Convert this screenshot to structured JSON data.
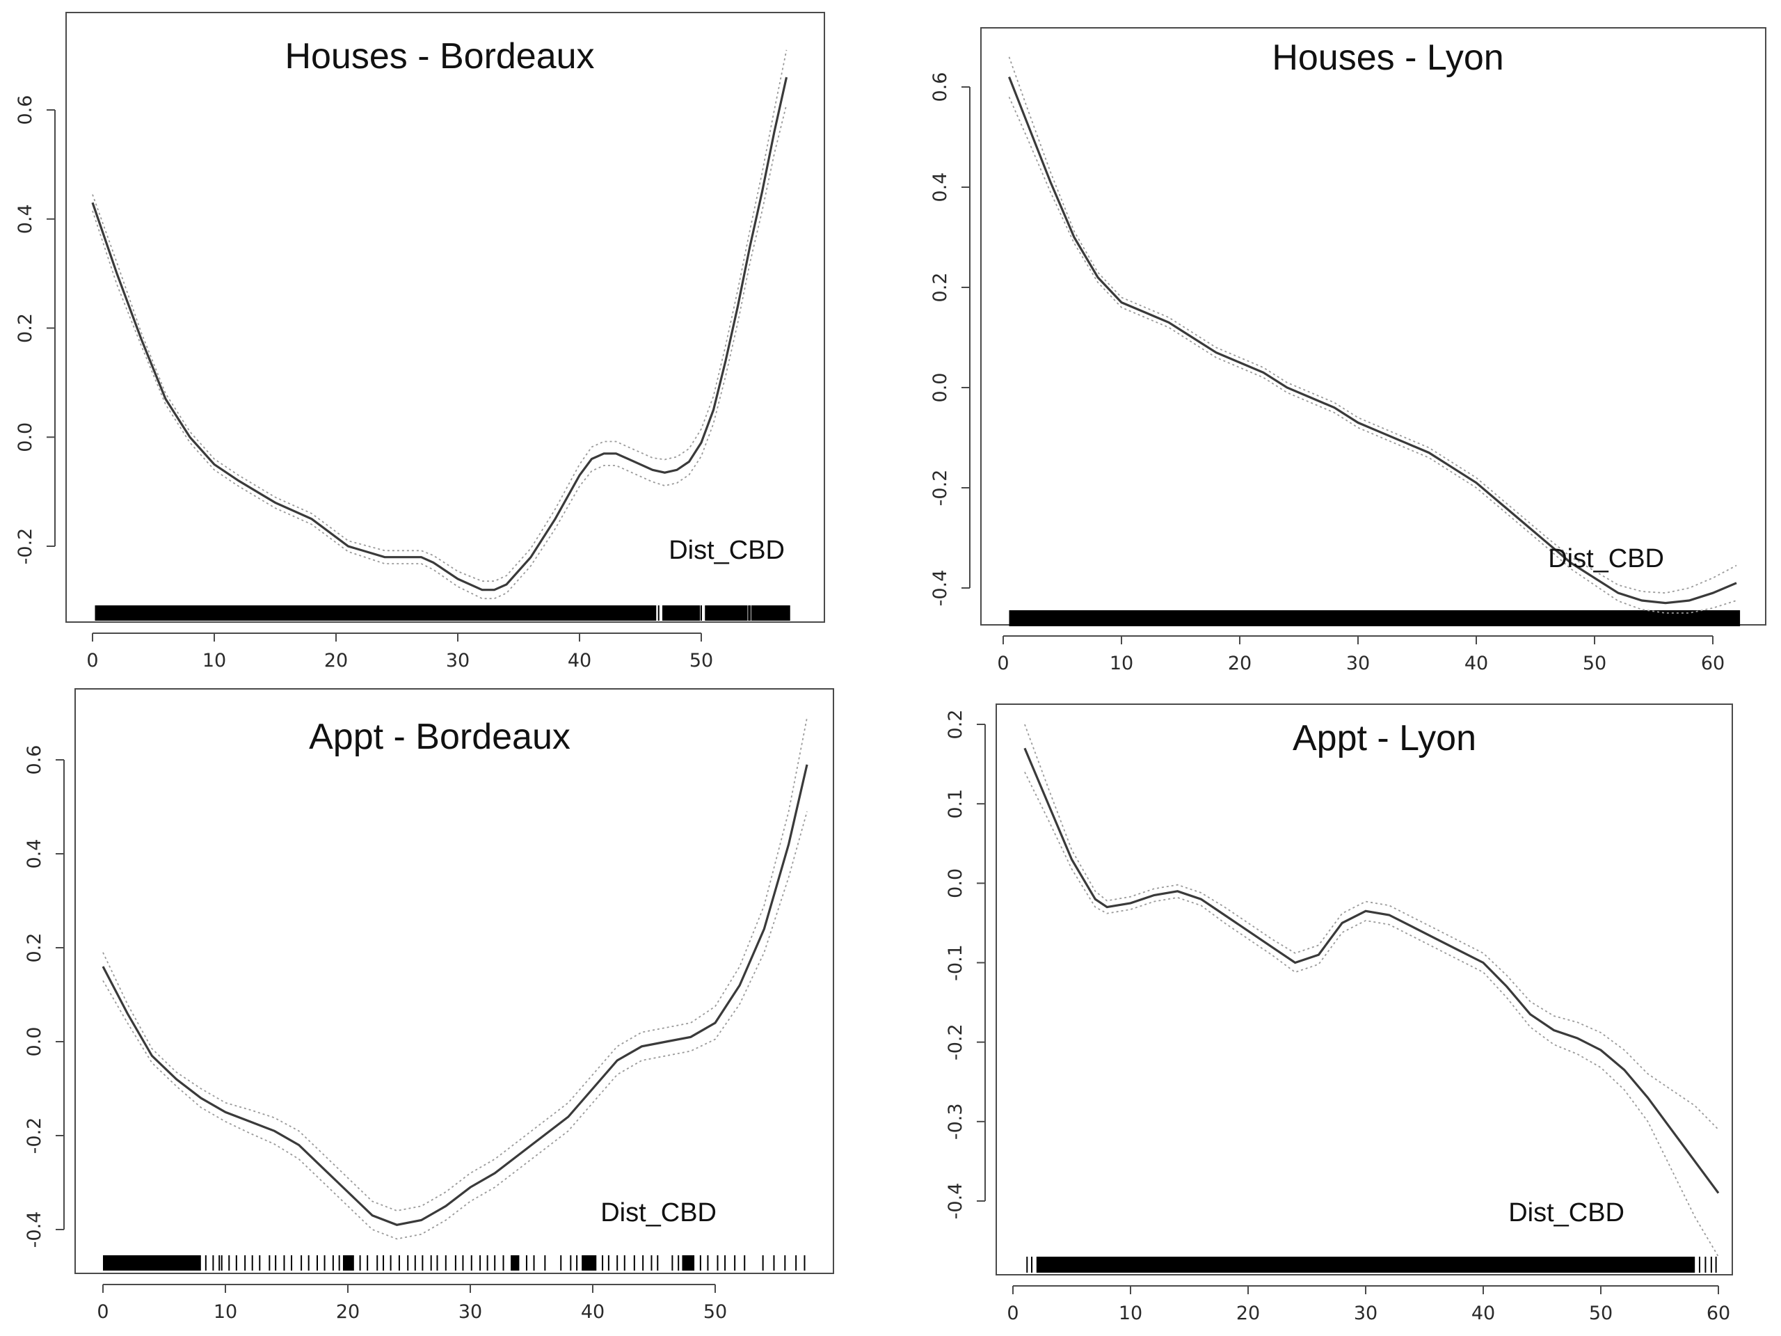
{
  "chart_data": [
    {
      "type": "line",
      "title": "Houses - Bordeaux",
      "xlabel": "Dist_CBD",
      "ylabel": "",
      "xlim": [
        0,
        60
      ],
      "ylim": [
        -0.3,
        0.7
      ],
      "x_ticks": [
        "0",
        "10",
        "20",
        "30",
        "40",
        "50"
      ],
      "y_ticks": [
        "-0.2",
        "0.0",
        "0.2",
        "0.4",
        "0.6"
      ],
      "x": [
        0,
        2,
        4,
        6,
        8,
        10,
        12,
        15,
        18,
        21,
        24,
        27,
        28,
        30,
        32,
        33,
        34,
        36,
        38,
        40,
        41,
        42,
        43,
        44,
        45,
        46,
        47,
        48,
        49,
        50,
        51,
        52,
        53,
        54,
        55,
        56,
        57
      ],
      "series": [
        {
          "values": [
            0.43,
            0.3,
            0.18,
            0.07,
            0.0,
            -0.05,
            -0.08,
            -0.12,
            -0.15,
            -0.2,
            -0.22,
            -0.22,
            -0.23,
            -0.26,
            -0.28,
            -0.28,
            -0.27,
            -0.22,
            -0.15,
            -0.07,
            -0.04,
            -0.03,
            -0.03,
            -0.04,
            -0.05,
            -0.06,
            -0.065,
            -0.06,
            -0.045,
            -0.01,
            0.05,
            0.14,
            0.24,
            0.35,
            0.45,
            0.56,
            0.66
          ]
        }
      ],
      "band_halfwidth": [
        0.015,
        0.02,
        0.012,
        0.01,
        0.01,
        0.01,
        0.01,
        0.01,
        0.01,
        0.01,
        0.012,
        0.012,
        0.013,
        0.014,
        0.016,
        0.016,
        0.016,
        0.016,
        0.018,
        0.02,
        0.022,
        0.022,
        0.022,
        0.022,
        0.022,
        0.022,
        0.024,
        0.024,
        0.024,
        0.025,
        0.025,
        0.028,
        0.03,
        0.03,
        0.035,
        0.04,
        0.05
      ],
      "rug_ranges": [
        [
          0.2,
          46.3
        ],
        [
          46.8,
          49.9
        ],
        [
          50.3,
          53.8
        ],
        [
          54.1,
          57.3
        ]
      ],
      "rug_lines": [
        46.5,
        50.0,
        53.9,
        54.0,
        55.6,
        56.5
      ]
    },
    {
      "type": "line",
      "title": "Houses - Lyon",
      "xlabel": "Dist_CBD",
      "ylabel": "",
      "xlim": [
        0,
        62
      ],
      "ylim": [
        -0.45,
        0.65
      ],
      "x_ticks": [
        "0",
        "10",
        "20",
        "30",
        "40",
        "50",
        "60"
      ],
      "y_ticks": [
        "-0.4",
        "-0.2",
        "0.0",
        "0.2",
        "0.4",
        "0.6"
      ],
      "x": [
        0.5,
        2,
        4,
        6,
        8,
        10,
        12,
        14,
        16,
        18,
        20,
        22,
        24,
        26,
        28,
        30,
        32,
        34,
        36,
        38,
        40,
        42,
        44,
        46,
        48,
        50,
        52,
        54,
        56,
        58,
        60,
        62
      ],
      "series": [
        {
          "values": [
            0.62,
            0.53,
            0.41,
            0.3,
            0.22,
            0.17,
            0.15,
            0.13,
            0.1,
            0.07,
            0.05,
            0.03,
            0.0,
            -0.02,
            -0.04,
            -0.07,
            -0.09,
            -0.11,
            -0.13,
            -0.16,
            -0.19,
            -0.23,
            -0.27,
            -0.31,
            -0.35,
            -0.38,
            -0.41,
            -0.425,
            -0.43,
            -0.425,
            -0.41,
            -0.39
          ]
        }
      ],
      "band_halfwidth": [
        0.04,
        0.03,
        0.02,
        0.012,
        0.01,
        0.01,
        0.01,
        0.01,
        0.01,
        0.01,
        0.01,
        0.01,
        0.01,
        0.01,
        0.01,
        0.01,
        0.01,
        0.01,
        0.01,
        0.01,
        0.01,
        0.01,
        0.01,
        0.01,
        0.012,
        0.014,
        0.016,
        0.018,
        0.02,
        0.025,
        0.03,
        0.035
      ],
      "rug_ranges": [
        [
          0.5,
          62.3
        ]
      ],
      "rug_lines": []
    },
    {
      "type": "line",
      "title": "Appt - Bordeaux",
      "xlabel": "Dist_CBD",
      "ylabel": "",
      "xlim": [
        0,
        60
      ],
      "ylim": [
        -0.45,
        0.7
      ],
      "x_ticks": [
        "0",
        "10",
        "20",
        "30",
        "40",
        "50"
      ],
      "y_ticks": [
        "-0.4",
        "-0.2",
        "0.0",
        "0.2",
        "0.4",
        "0.6"
      ],
      "x": [
        0,
        2,
        4,
        6,
        8,
        10,
        12,
        14,
        16,
        18,
        20,
        22,
        24,
        26,
        28,
        30,
        32,
        34,
        36,
        38,
        40,
        42,
        44,
        46,
        48,
        50,
        52,
        54,
        56,
        57.5
      ],
      "series": [
        {
          "values": [
            0.16,
            0.06,
            -0.03,
            -0.08,
            -0.12,
            -0.15,
            -0.17,
            -0.19,
            -0.22,
            -0.27,
            -0.32,
            -0.37,
            -0.39,
            -0.38,
            -0.35,
            -0.31,
            -0.28,
            -0.24,
            -0.2,
            -0.16,
            -0.1,
            -0.04,
            -0.01,
            0.0,
            0.01,
            0.04,
            0.12,
            0.24,
            0.42,
            0.59
          ]
        }
      ],
      "band_halfwidth": [
        0.03,
        0.02,
        0.015,
        0.015,
        0.02,
        0.02,
        0.025,
        0.028,
        0.03,
        0.03,
        0.03,
        0.03,
        0.03,
        0.03,
        0.03,
        0.03,
        0.03,
        0.03,
        0.03,
        0.03,
        0.03,
        0.03,
        0.03,
        0.03,
        0.03,
        0.035,
        0.04,
        0.05,
        0.07,
        0.1
      ],
      "rug_ranges": [
        [
          0,
          8
        ],
        [
          19.6,
          20.5
        ],
        [
          33.3,
          34
        ],
        [
          39.1,
          40.3
        ],
        [
          47.3,
          48.3
        ]
      ],
      "rug_lines": [
        8.4,
        9.0,
        9.5,
        9.7,
        10.3,
        10.9,
        11.6,
        12.2,
        12.8,
        13.6,
        14.1,
        14.8,
        15.4,
        16.2,
        16.8,
        17.5,
        18.1,
        18.8,
        19.3,
        21.0,
        21.6,
        22.4,
        22.9,
        23.5,
        24.2,
        24.9,
        25.5,
        26.1,
        26.8,
        27.3,
        28.0,
        28.8,
        29.4,
        30.1,
        30.8,
        31.4,
        32.0,
        32.7,
        34.6,
        35.2,
        36.1,
        37.4,
        38.2,
        38.7,
        40.8,
        41.3,
        42.0,
        42.6,
        43.4,
        44.1,
        44.8,
        45.3,
        46.5,
        47.0,
        48.8,
        49.4,
        50.2,
        50.8,
        51.6,
        52.4,
        53.9,
        54.8,
        55.7,
        56.6,
        57.3
      ]
    },
    {
      "type": "line",
      "title": "Appt - Lyon",
      "xlabel": "Dist_CBD",
      "ylabel": "",
      "xlim": [
        0,
        61
      ],
      "ylim": [
        -0.48,
        0.22
      ],
      "x_ticks": [
        "0",
        "10",
        "20",
        "30",
        "40",
        "50",
        "60"
      ],
      "y_ticks": [
        "-0.4",
        "-0.3",
        "-0.2",
        "-0.1",
        "0.0",
        "0.1",
        "0.2"
      ],
      "x": [
        1,
        3,
        5,
        7,
        8,
        10,
        12,
        14,
        16,
        18,
        20,
        22,
        24,
        26,
        28,
        30,
        32,
        34,
        36,
        38,
        40,
        42,
        44,
        46,
        48,
        50,
        52,
        54,
        56,
        58,
        60
      ],
      "series": [
        {
          "values": [
            0.17,
            0.1,
            0.03,
            -0.02,
            -0.03,
            -0.025,
            -0.015,
            -0.01,
            -0.02,
            -0.04,
            -0.06,
            -0.08,
            -0.1,
            -0.09,
            -0.05,
            -0.035,
            -0.04,
            -0.055,
            -0.07,
            -0.085,
            -0.1,
            -0.13,
            -0.165,
            -0.185,
            -0.195,
            -0.21,
            -0.235,
            -0.27,
            -0.31,
            -0.35,
            -0.39
          ]
        }
      ],
      "band_halfwidth": [
        0.03,
        0.02,
        0.012,
        0.01,
        0.008,
        0.008,
        0.008,
        0.008,
        0.008,
        0.01,
        0.01,
        0.01,
        0.012,
        0.012,
        0.012,
        0.012,
        0.012,
        0.012,
        0.012,
        0.012,
        0.012,
        0.014,
        0.016,
        0.018,
        0.02,
        0.022,
        0.025,
        0.03,
        0.05,
        0.07,
        0.08
      ],
      "rug_ranges": [
        [
          2,
          58
        ]
      ],
      "rug_lines": [
        1.2,
        1.6,
        58.4,
        58.9,
        59.4,
        59.8
      ]
    }
  ]
}
